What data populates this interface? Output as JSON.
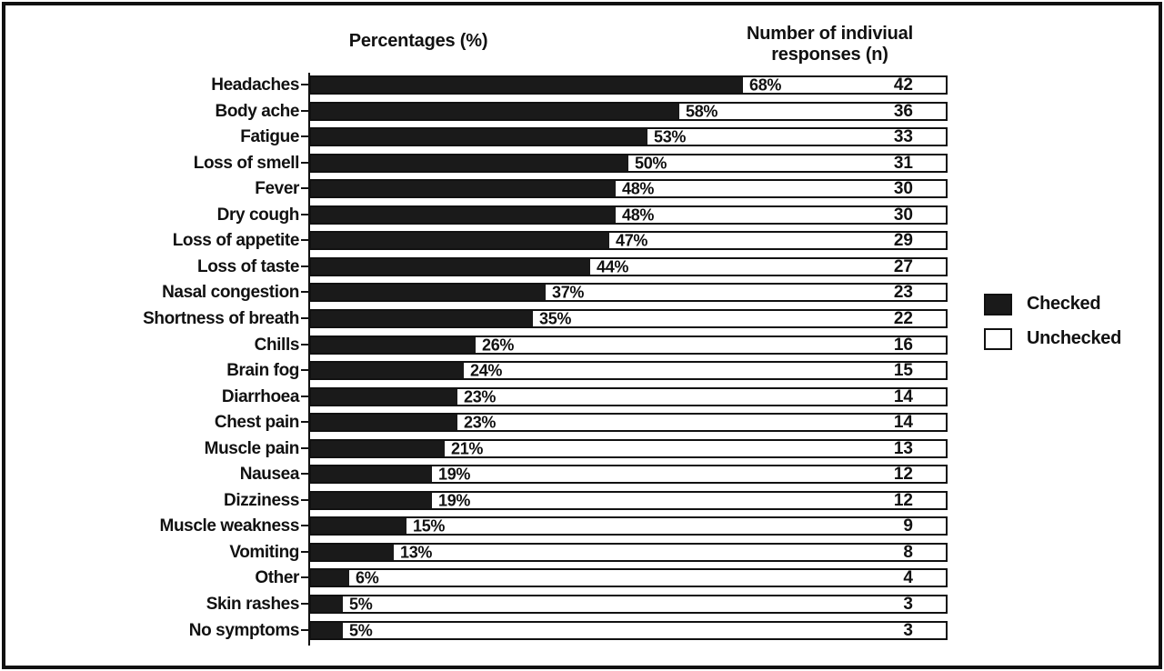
{
  "titles": {
    "percent_axis": "Percentages (%)",
    "responses_line1": "Number of indiviual",
    "responses_line2": "responses (n)"
  },
  "legend": {
    "checked": "Checked",
    "unchecked": "Unchecked"
  },
  "colors": {
    "checked_fill": "#1a1a1a",
    "unchecked_fill": "#ffffff",
    "outline": "#111111"
  },
  "chart_data": {
    "type": "bar",
    "orientation": "horizontal",
    "title_left": "Percentages (%)",
    "title_right": "Number of indiviual responses (n)",
    "xlim": [
      0,
      100
    ],
    "grid": false,
    "legend_position": "right",
    "legend_entries": [
      "Checked",
      "Unchecked"
    ],
    "categories": [
      "Headaches",
      "Body ache",
      "Fatigue",
      "Loss of smell",
      "Fever",
      "Dry cough",
      "Loss of appetite",
      "Loss of taste",
      "Nasal congestion",
      "Shortness of breath",
      "Chills",
      "Brain fog",
      "Diarrhoea",
      "Chest pain",
      "Muscle pain",
      "Nausea",
      "Dizziness",
      "Muscle weakness",
      "Vomiting",
      "Other",
      "Skin rashes",
      "No symptoms"
    ],
    "series": [
      {
        "name": "Checked percentage (%)",
        "unit": "%",
        "values": [
          68,
          58,
          53,
          50,
          48,
          48,
          47,
          44,
          37,
          35,
          26,
          24,
          23,
          23,
          21,
          19,
          19,
          15,
          13,
          6,
          5,
          5
        ]
      },
      {
        "name": "Number of individual responses (n)",
        "unit": "n",
        "values": [
          42,
          36,
          33,
          31,
          30,
          30,
          29,
          27,
          23,
          22,
          16,
          15,
          14,
          14,
          13,
          12,
          12,
          9,
          8,
          4,
          3,
          3
        ]
      }
    ]
  }
}
